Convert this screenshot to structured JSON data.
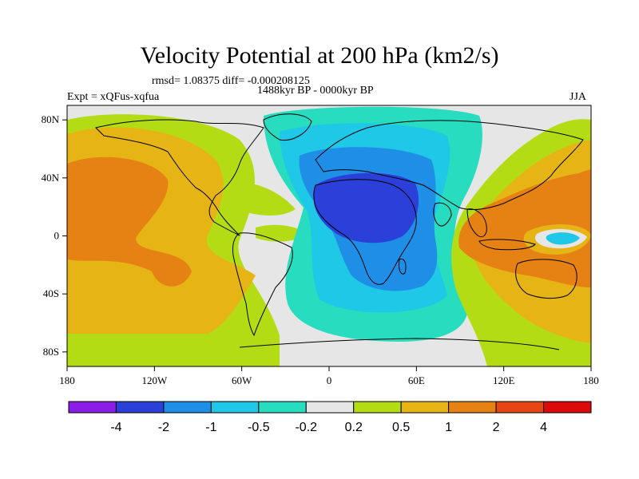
{
  "title": "Velocity Potential at 200 hPa (km2/s)",
  "stats": "rmsd= 1.08375 diff= -0.000208125",
  "experiment": "Expt = xQFus-xqfua",
  "period": "1488kyr BP - 0000kyr BP",
  "season": "JJA",
  "map": {
    "lon_range": [
      -180,
      180
    ],
    "lat_range": [
      -90,
      90
    ],
    "x_ticks": [
      "180",
      "120W",
      "60W",
      "0",
      "60E",
      "120E",
      "180"
    ],
    "y_ticks": [
      "80N",
      "40N",
      "0",
      "40S",
      "80S"
    ]
  },
  "colorbar": {
    "labels": [
      "-4",
      "-2",
      "-1",
      "-0.5",
      "-0.2",
      "0.2",
      "0.5",
      "1",
      "2",
      "4"
    ],
    "colors": [
      "#8b1ee6",
      "#2b3fd9",
      "#1e8ee6",
      "#1ec8e6",
      "#28dcc0",
      "#e6e6e6",
      "#b4dc14",
      "#e6b414",
      "#e68214",
      "#e64614",
      "#dc0a0a"
    ]
  },
  "palette": {
    "background": "#e6e6e6",
    "land_outline": "#000000"
  }
}
